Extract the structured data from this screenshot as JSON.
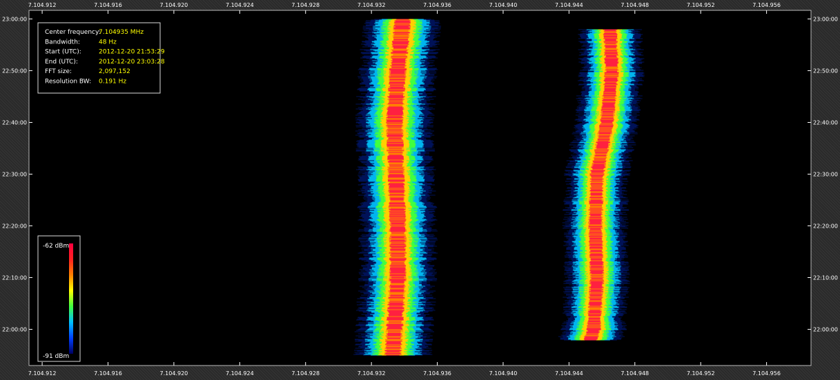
{
  "chart_data": {
    "type": "heatmap",
    "title": "",
    "xlabel": "",
    "ylabel": "",
    "x_ticks": [
      "7.104.912",
      "7.104.916",
      "7.104.920",
      "7.104.924",
      "7.104.928",
      "7.104.932",
      "7.104.936",
      "7.104.940",
      "7.104.944",
      "7.104.948",
      "7.104.952",
      "7.104.956"
    ],
    "y_ticks": [
      "23:00:00",
      "22:50:00",
      "22:40:00",
      "22:30:00",
      "22:20:00",
      "22:10:00",
      "22:00:00"
    ],
    "xlim_mhz": [
      7.1049112,
      7.1049587
    ],
    "ylim_utc": [
      "21:53:00",
      "23:01:40"
    ],
    "info": [
      {
        "label": "Center frequency:",
        "value": "7.104935 MHz"
      },
      {
        "label": "Bandwidth:",
        "value": "48 Hz"
      },
      {
        "label": "Start (UTC):",
        "value": "2012-12-20 21:53:29"
      },
      {
        "label": "End (UTC):",
        "value": "2012-12-20 23:03:28"
      },
      {
        "label": "FFT size:",
        "value": "2,097,152"
      },
      {
        "label": "Resolution BW:",
        "value": "0.191 Hz"
      }
    ],
    "colorbar": {
      "max_label": "-62 dBm",
      "min_label": "-91 dBm",
      "colors": [
        "#ff0040",
        "#ff2020",
        "#ff8000",
        "#ffff00",
        "#40ff40",
        "#00c0ff",
        "#0040ff",
        "#000060"
      ]
    },
    "signals": [
      {
        "name": "",
        "start_utc": "21:55:00",
        "end_utc": "23:00:00",
        "center_mhz": [
          [
            "23:00:00",
            7.1049339
          ],
          [
            "22:50:00",
            7.1049336
          ],
          [
            "22:40:00",
            7.1049334
          ],
          [
            "22:30:00",
            7.1049335
          ],
          [
            "22:20:00",
            7.1049336
          ],
          [
            "22:10:00",
            7.1049336
          ],
          [
            "22:00:00",
            7.1049334
          ],
          [
            "21:55:00",
            7.1049333
          ]
        ],
        "width_hz": 3
      },
      {
        "name": "",
        "start_utc": "21:58:00",
        "end_utc": "22:58:00",
        "center_mhz": [
          [
            "22:58:00",
            7.1049465
          ],
          [
            "22:50:00",
            7.1049466
          ],
          [
            "22:40:00",
            7.1049463
          ],
          [
            "22:30:00",
            7.1049457
          ],
          [
            "22:20:00",
            7.1049456
          ],
          [
            "22:10:00",
            7.1049457
          ],
          [
            "22:00:00",
            7.1049455
          ],
          [
            "21:58:00",
            7.1049453
          ]
        ],
        "width_hz": 2.5
      }
    ]
  }
}
